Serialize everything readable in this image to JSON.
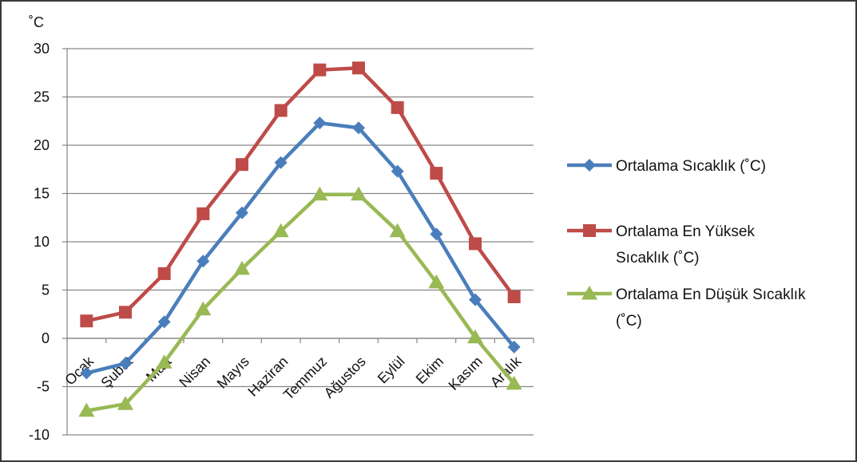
{
  "chart_data": {
    "type": "line",
    "ylabel": "˚C",
    "ylim": [
      -10,
      30
    ],
    "yticks": [
      30,
      25,
      20,
      15,
      10,
      5,
      0,
      -5,
      -10
    ],
    "categories": [
      "Ocak",
      "Şubat",
      "Mart",
      "Nisan",
      "Mayıs",
      "Haziran",
      "Temmuz",
      "Ağustos",
      "Eylül",
      "Ekim",
      "Kasım",
      "Aralık"
    ],
    "grid": true,
    "legend_position": "right",
    "series": [
      {
        "name": "Ortalama Sıcaklık (˚C)",
        "legend_lines": [
          "Ortalama Sıcaklık (˚C)"
        ],
        "color": "#4a7ebb",
        "marker": "diamond",
        "values": [
          -3.6,
          -2.6,
          1.7,
          8.0,
          13.0,
          18.2,
          22.3,
          21.8,
          17.3,
          10.8,
          4.0,
          -0.9
        ]
      },
      {
        "name": "Ortalama En Yüksek Sıcaklık (˚C)",
        "legend_lines": [
          "Ortalama En Yüksek",
          "Sıcaklık (˚C)"
        ],
        "color": "#be4b48",
        "marker": "square",
        "values": [
          1.8,
          2.7,
          6.7,
          12.9,
          18.0,
          23.6,
          27.8,
          28.0,
          23.9,
          17.1,
          9.8,
          4.3
        ]
      },
      {
        "name": "Ortalama En Düşük Sıcaklık (˚C)",
        "legend_lines": [
          "Ortalama En Düşük Sıcaklık",
          "(˚C)"
        ],
        "color": "#98b954",
        "marker": "triangle",
        "values": [
          -7.5,
          -6.8,
          -2.5,
          3.0,
          7.2,
          11.1,
          14.9,
          14.9,
          11.1,
          5.8,
          0.1,
          -4.7
        ]
      }
    ]
  }
}
